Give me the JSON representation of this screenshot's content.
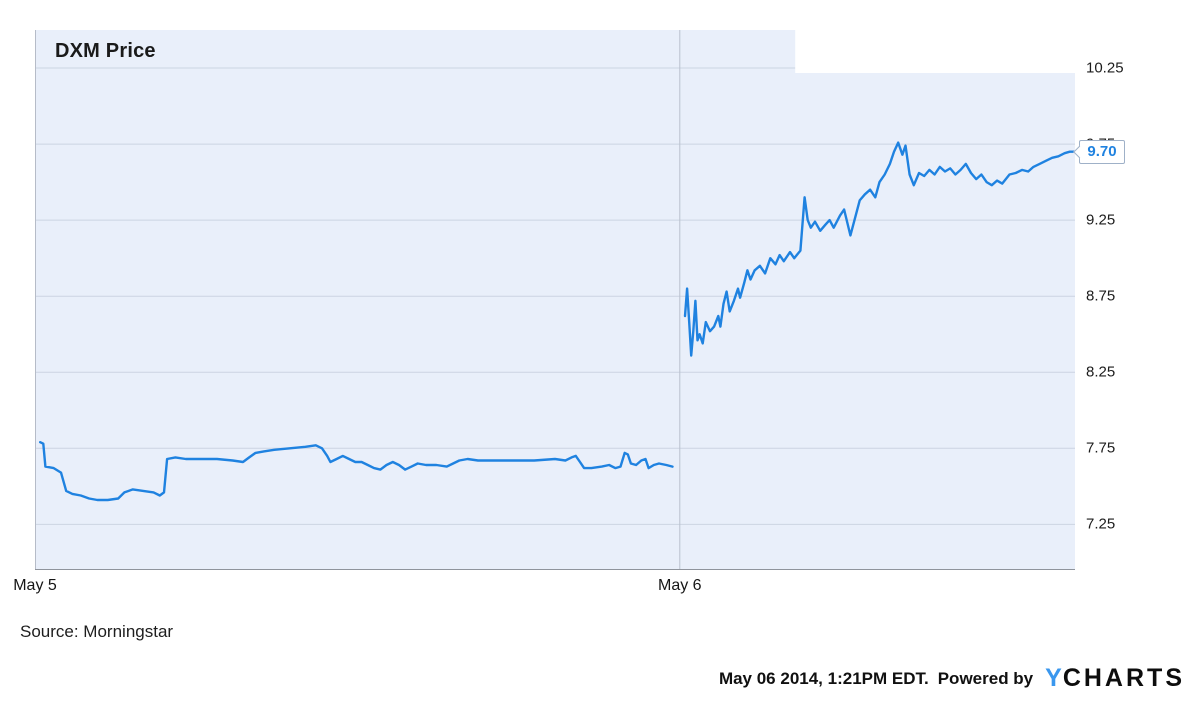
{
  "title": "DXM Price",
  "source_text": "Source: Morningstar",
  "price_tag_label": "9.70",
  "footer": {
    "timestamp": "May 06 2014, 1:21PM EDT.",
    "powered_by": "Powered by",
    "logo_y": "Y",
    "logo_charts": "CHARTS"
  },
  "colors": {
    "line": "#1f82e0",
    "plot_bg": "#e9effa",
    "grid": "#ccd4e2",
    "vertical_grid": "#b9c1ce",
    "axis": "#8f949c",
    "tag_text": "#1f82e0"
  },
  "chart_data": {
    "type": "line",
    "title": "DXM Price",
    "ylim": [
      6.95,
      10.5
    ],
    "y_ticks": [
      10.25,
      9.75,
      9.25,
      8.75,
      8.25,
      7.75,
      7.25
    ],
    "x_ticks": [
      {
        "label": "May 5",
        "pct": 0
      },
      {
        "label": "May 6",
        "pct": 62
      }
    ],
    "x_gridlines_pct": [
      62
    ],
    "grid": true,
    "last_price": 9.7,
    "series": [
      {
        "name": "DXM Price",
        "segments": [
          [
            [
              0.5,
              7.79
            ],
            [
              0.8,
              7.78
            ],
            [
              1.0,
              7.63
            ],
            [
              1.8,
              7.62
            ],
            [
              2.5,
              7.59
            ],
            [
              3.0,
              7.47
            ],
            [
              3.6,
              7.45
            ],
            [
              4.4,
              7.44
            ],
            [
              5.2,
              7.42
            ],
            [
              6.0,
              7.41
            ],
            [
              7.0,
              7.41
            ],
            [
              8.0,
              7.42
            ],
            [
              8.6,
              7.46
            ],
            [
              9.4,
              7.48
            ],
            [
              10.4,
              7.47
            ],
            [
              11.4,
              7.46
            ],
            [
              12.0,
              7.44
            ],
            [
              12.4,
              7.46
            ],
            [
              12.7,
              7.68
            ],
            [
              13.5,
              7.69
            ],
            [
              14.5,
              7.68
            ],
            [
              16.0,
              7.68
            ],
            [
              17.5,
              7.68
            ],
            [
              19.0,
              7.67
            ],
            [
              20.0,
              7.66
            ],
            [
              20.6,
              7.69
            ],
            [
              21.2,
              7.72
            ],
            [
              22.0,
              7.73
            ],
            [
              23.0,
              7.74
            ],
            [
              24.5,
              7.75
            ],
            [
              26.0,
              7.76
            ],
            [
              27.0,
              7.77
            ],
            [
              27.6,
              7.75
            ],
            [
              28.1,
              7.7
            ],
            [
              28.4,
              7.66
            ],
            [
              29.0,
              7.68
            ],
            [
              29.6,
              7.7
            ],
            [
              30.2,
              7.68
            ],
            [
              30.8,
              7.66
            ],
            [
              31.4,
              7.66
            ],
            [
              32.0,
              7.64
            ],
            [
              32.6,
              7.62
            ],
            [
              33.2,
              7.61
            ],
            [
              33.8,
              7.64
            ],
            [
              34.4,
              7.66
            ],
            [
              35.0,
              7.64
            ],
            [
              35.6,
              7.61
            ],
            [
              36.2,
              7.63
            ],
            [
              36.8,
              7.65
            ],
            [
              37.6,
              7.64
            ],
            [
              38.6,
              7.64
            ],
            [
              39.6,
              7.63
            ],
            [
              40.2,
              7.65
            ],
            [
              40.8,
              7.67
            ],
            [
              41.6,
              7.68
            ],
            [
              42.6,
              7.67
            ],
            [
              44.0,
              7.67
            ],
            [
              46.0,
              7.67
            ],
            [
              48.0,
              7.67
            ],
            [
              50.0,
              7.68
            ],
            [
              51.0,
              7.67
            ],
            [
              51.6,
              7.69
            ],
            [
              52.0,
              7.7
            ],
            [
              52.4,
              7.66
            ],
            [
              52.8,
              7.62
            ],
            [
              53.5,
              7.62
            ],
            [
              54.5,
              7.63
            ],
            [
              55.2,
              7.64
            ],
            [
              55.8,
              7.62
            ],
            [
              56.3,
              7.63
            ],
            [
              56.7,
              7.72
            ],
            [
              57.0,
              7.71
            ],
            [
              57.3,
              7.65
            ],
            [
              57.8,
              7.64
            ],
            [
              58.3,
              7.67
            ],
            [
              58.7,
              7.68
            ],
            [
              59.0,
              7.62
            ],
            [
              59.5,
              7.64
            ],
            [
              60.0,
              7.65
            ],
            [
              60.7,
              7.64
            ],
            [
              61.3,
              7.63
            ]
          ],
          [
            [
              62.5,
              8.62
            ],
            [
              62.7,
              8.8
            ],
            [
              62.9,
              8.58
            ],
            [
              63.1,
              8.36
            ],
            [
              63.3,
              8.52
            ],
            [
              63.5,
              8.72
            ],
            [
              63.7,
              8.46
            ],
            [
              63.9,
              8.5
            ],
            [
              64.2,
              8.44
            ],
            [
              64.5,
              8.58
            ],
            [
              64.9,
              8.52
            ],
            [
              65.3,
              8.55
            ],
            [
              65.7,
              8.62
            ],
            [
              65.9,
              8.55
            ],
            [
              66.2,
              8.7
            ],
            [
              66.5,
              8.78
            ],
            [
              66.8,
              8.65
            ],
            [
              67.2,
              8.72
            ],
            [
              67.6,
              8.8
            ],
            [
              67.8,
              8.74
            ],
            [
              68.2,
              8.84
            ],
            [
              68.5,
              8.92
            ],
            [
              68.8,
              8.86
            ],
            [
              69.2,
              8.92
            ],
            [
              69.7,
              8.95
            ],
            [
              70.2,
              8.9
            ],
            [
              70.7,
              9.0
            ],
            [
              71.2,
              8.96
            ],
            [
              71.6,
              9.02
            ],
            [
              72.0,
              8.98
            ],
            [
              72.6,
              9.04
            ],
            [
              73.0,
              9.0
            ],
            [
              73.6,
              9.05
            ],
            [
              74.0,
              9.4
            ],
            [
              74.3,
              9.25
            ],
            [
              74.6,
              9.2
            ],
            [
              75.0,
              9.24
            ],
            [
              75.5,
              9.18
            ],
            [
              76.0,
              9.22
            ],
            [
              76.4,
              9.25
            ],
            [
              76.8,
              9.2
            ],
            [
              77.4,
              9.28
            ],
            [
              77.8,
              9.32
            ],
            [
              78.4,
              9.15
            ],
            [
              78.8,
              9.25
            ],
            [
              79.3,
              9.38
            ],
            [
              79.8,
              9.42
            ],
            [
              80.3,
              9.45
            ],
            [
              80.8,
              9.4
            ],
            [
              81.2,
              9.5
            ],
            [
              81.7,
              9.55
            ],
            [
              82.2,
              9.62
            ],
            [
              82.6,
              9.7
            ],
            [
              83.0,
              9.76
            ],
            [
              83.4,
              9.68
            ],
            [
              83.7,
              9.74
            ],
            [
              84.1,
              9.55
            ],
            [
              84.5,
              9.48
            ],
            [
              85.0,
              9.56
            ],
            [
              85.5,
              9.54
            ],
            [
              86.0,
              9.58
            ],
            [
              86.5,
              9.55
            ],
            [
              87.0,
              9.6
            ],
            [
              87.5,
              9.57
            ],
            [
              88.0,
              9.59
            ],
            [
              88.5,
              9.55
            ],
            [
              89.0,
              9.58
            ],
            [
              89.5,
              9.62
            ],
            [
              90.0,
              9.56
            ],
            [
              90.5,
              9.52
            ],
            [
              91.0,
              9.55
            ],
            [
              91.5,
              9.5
            ],
            [
              92.0,
              9.48
            ],
            [
              92.5,
              9.51
            ],
            [
              93.0,
              9.49
            ],
            [
              93.7,
              9.55
            ],
            [
              94.3,
              9.56
            ],
            [
              94.9,
              9.58
            ],
            [
              95.5,
              9.57
            ],
            [
              96.0,
              9.6
            ],
            [
              96.6,
              9.62
            ],
            [
              97.2,
              9.64
            ],
            [
              97.8,
              9.66
            ],
            [
              98.4,
              9.67
            ],
            [
              99.0,
              9.69
            ],
            [
              99.5,
              9.7
            ],
            [
              100,
              9.7
            ]
          ]
        ]
      }
    ]
  }
}
